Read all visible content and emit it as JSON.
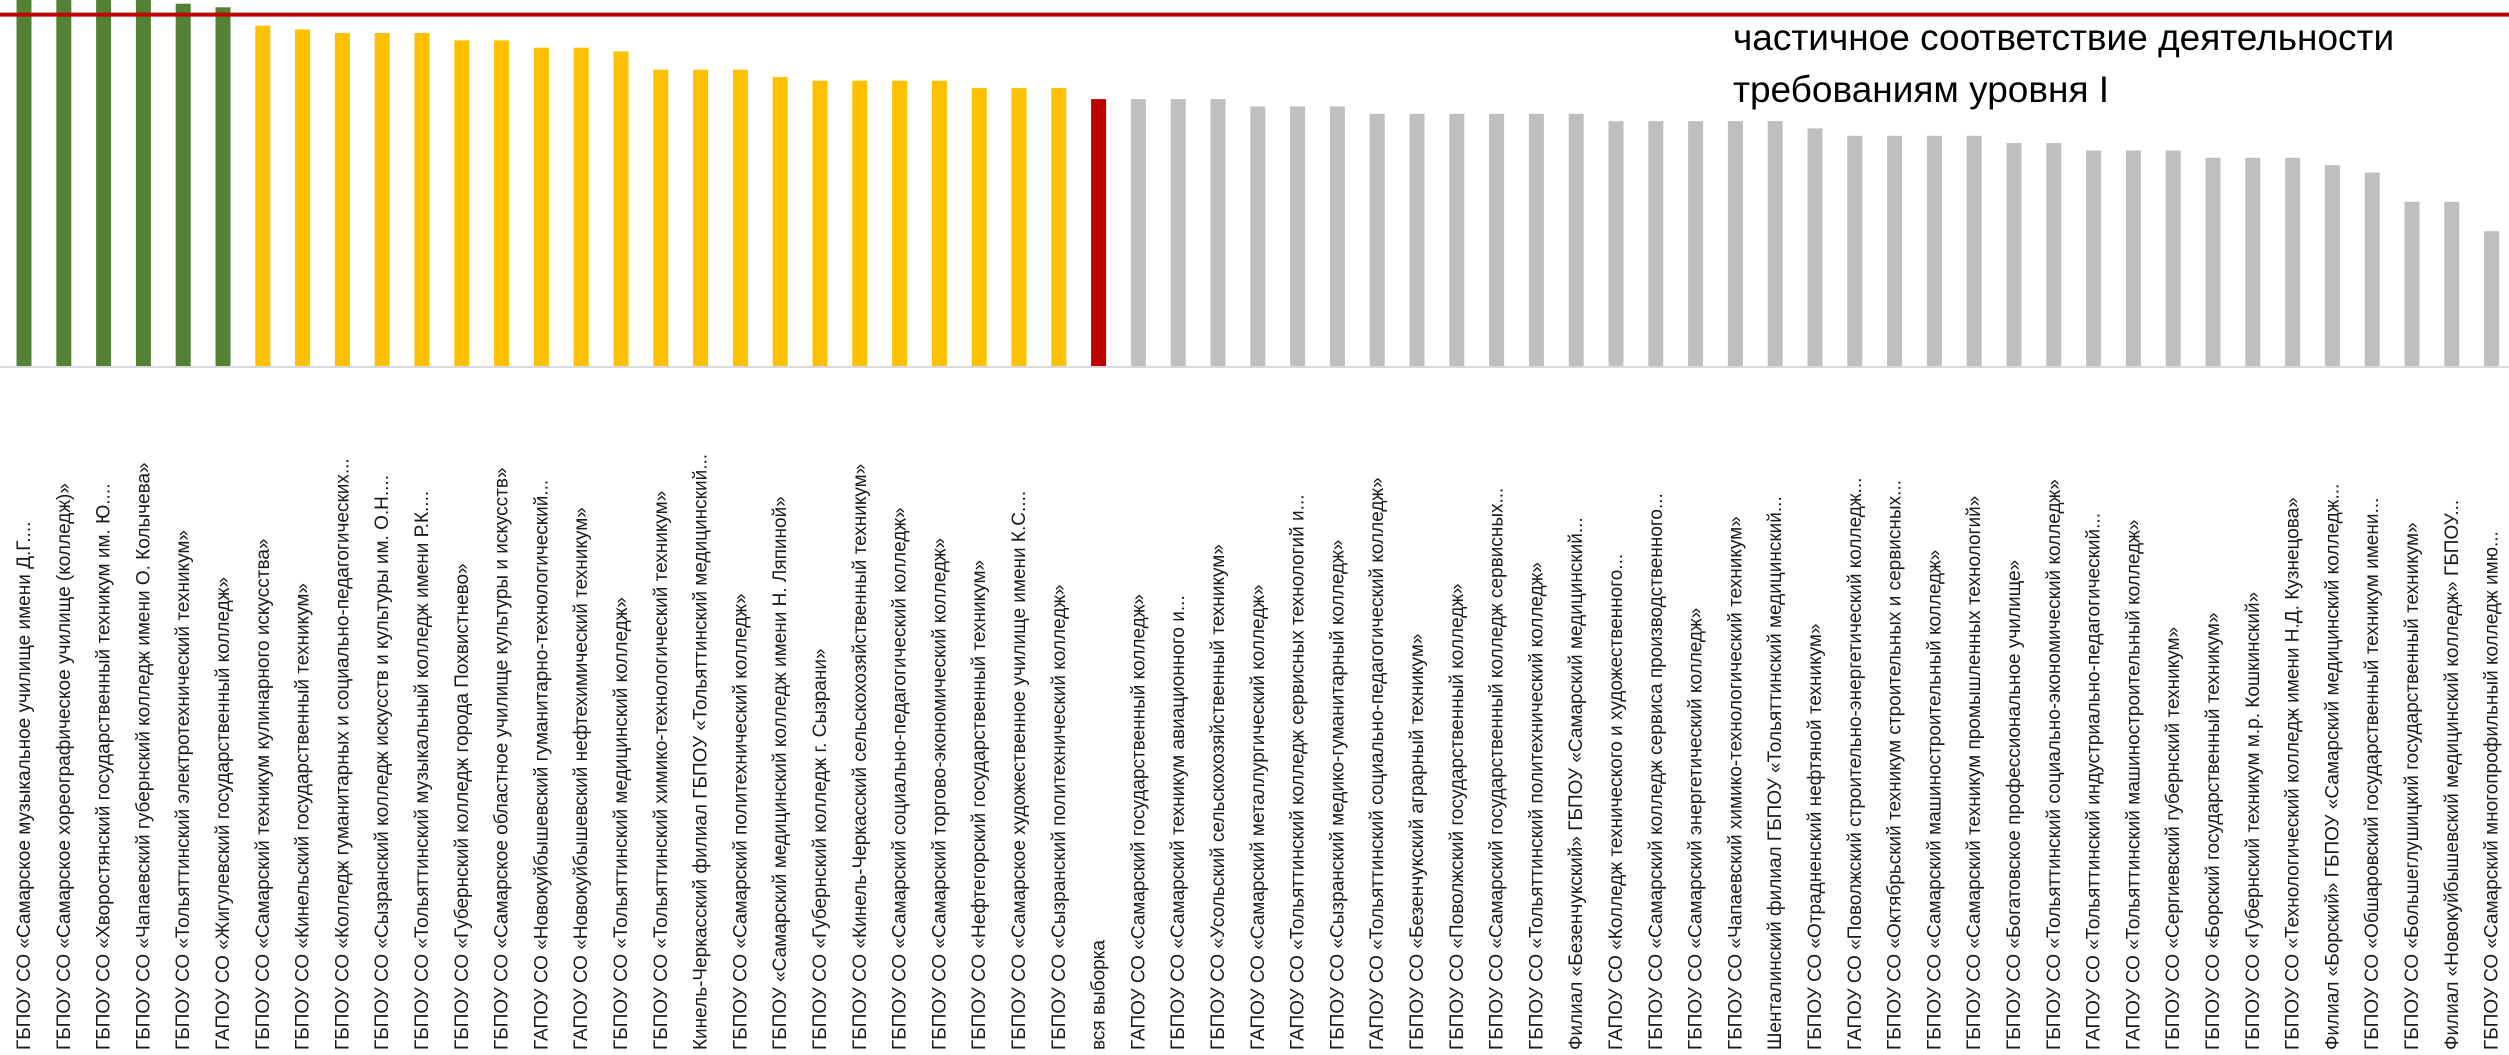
{
  "chart_data": {
    "type": "bar",
    "title": "",
    "xlabel": "",
    "ylabel": "",
    "ylim": [
      0,
      100
    ],
    "grid": false,
    "legend": "none",
    "annotation": "частичное соответствие деятельности требованиям уровня I",
    "threshold_line": {
      "value": 96,
      "color": "#C00000"
    },
    "colors": {
      "green": "#548235",
      "yellow": "#FFC000",
      "red": "#C00000",
      "gray": "#BFBFBF",
      "axis": "#D9D9D9"
    },
    "categories": [
      "ГБПОУ СО «Самарское музыкальное училище имени Д.Г....",
      "ГБПОУ СО «Самарское хореографическое училище (колледж)»",
      "ГБПОУ СО «Хворостянский государственный техникум им. Ю....",
      "ГБПОУ СО «Чапаевский губернский колледж имени О. Колычева»",
      "ГБПОУ СО «Тольяттинский электротехнический техникум»",
      "ГАПОУ СО «Жигулевский государственный колледж»",
      "ГБПОУ СО «Самарский техникум кулинарного искусства»",
      "ГБПОУ СО «Кинельский государственный техникум»",
      "ГБПОУ СО «Колледж гуманитарных и социально-педагогических...",
      "ГБПОУ СО «Сызранский колледж искусств и культуры им. О.Н....",
      "ГБПОУ СО «Тольяттинский музыкальный колледж имени Р.К....",
      "ГБПОУ СО «Губернский колледж города Похвистнево»",
      "ГБПОУ СО «Самарское областное училище культуры и искусств»",
      "ГАПОУ СО «Новокуйбышевский гуманитарно-технологический...",
      "ГАПОУ СО «Новокуйбышевский нефтехимический техникум»",
      "ГБПОУ СО «Тольяттинский медицинский колледж»",
      "ГБПОУ СО «Тольяттинский химико-технологический техникум»",
      "Кинель-Черкасский филиал ГБПОУ «Тольяттинский медицинский...",
      "ГБПОУ СО «Самарский политехнический колледж»",
      "ГБПОУ «Самарский медицинский колледж имени Н. Ляпиной»",
      "ГБПОУ СО «Губернский колледж г. Сызрани»",
      "ГБПОУ СО «Кинель-Черкасский сельскохозяйственный техникум»",
      "ГБПОУ СО «Самарский социально-педагогический колледж»",
      "ГБПОУ СО «Самарский торгово-экономический колледж»",
      "ГБПОУ СО «Нефтегорский государственный техникум»",
      "ГБПОУ СО «Самарское художественное училище имени К.С....",
      "ГБПОУ СО «Сызранский политехнический колледж»",
      "вся выборка",
      "ГАПОУ СО «Самарский государственный колледж»",
      "ГБПОУ СО «Самарский техникум авиационного и...",
      "ГБПОУ СО «Усольский сельскохозяйственный техникум»",
      "ГАПОУ СО «Самарский металлургический колледж»",
      "ГАПОУ СО «Тольяттинский колледж сервисных технологий и...",
      "ГБПОУ СО «Сызранский медико-гуманитарный колледж»",
      "ГАПОУ СО «Тольяттинский социально-педагогический колледж»",
      "ГБПОУ СО «Безенчукский аграрный техникум»",
      "ГБПОУ СО «Поволжский государственный колледж»",
      "ГБПОУ СО «Самарский государственный колледж сервисных...",
      "ГБПОУ СО «Тольяттинский политехнический колледж»",
      "Филиал «Безенчукский» ГБПОУ «Самарский медицинский...",
      "ГАПОУ СО «Колледж технического и художественного...",
      "ГБПОУ СО «Самарский колледж сервиса производственного...",
      "ГБПОУ СО «Самарский энергетический колледж»",
      "ГБПОУ СО «Чапаевский химико-технологический техникум»",
      "Шенталинский филиал ГБПОУ «Тольяттинский медицинский...",
      "ГБПОУ СО «Отрадненский нефтяной техникум»",
      "ГАПОУ СО «Поволжский строительно-энергетический колледж...",
      "ГБПОУ СО «Октябрьский техникум строительных и сервисных...",
      "ГБПОУ СО «Самарский машиностроительный колледж»",
      "ГБПОУ СО «Самарский техникум промышленных технологий»",
      "ГБПОУ СО «Богатовское профессиональное училище»",
      "ГБПОУ СО «Тольяттинский социально-экономический колледж»",
      "ГАПОУ СО «Тольяттинский индустриально-педагогический...",
      "ГАПОУ СО «Тольяттинский машиностроительный колледж»",
      "ГБПОУ СО «Сергиевский губернский техникум»",
      "ГБПОУ СО «Борский государственный техникум»",
      "ГБПОУ СО «Губернский техникум м.р. Кошкинский»",
      "ГБПОУ СО «Технологический колледж имени Н.Д. Кузнецова»",
      "Филиал «Борский» ГБПОУ «Самарский медицинский колледж...",
      "ГБПОУ СО «Обшаровский государственный техникум имени...",
      "ГБПОУ СО «Большеглушицкий государственный техникум»",
      "Филиал «Новокуйбышевский медицинский колледж» ГБПОУ...",
      "ГБПОУ СО «Самарский многопрофильный колледж имю..."
    ],
    "values": [
      100,
      100,
      100,
      100,
      99,
      98,
      93,
      92,
      91,
      91,
      91,
      89,
      89,
      87,
      87,
      86,
      81,
      81,
      81,
      79,
      78,
      78,
      78,
      78,
      76,
      76,
      76,
      73,
      73,
      73,
      73,
      71,
      71,
      71,
      69,
      69,
      69,
      69,
      69,
      69,
      67,
      67,
      67,
      67,
      67,
      65,
      63,
      63,
      63,
      63,
      61,
      61,
      59,
      59,
      59,
      57,
      57,
      57,
      55,
      53,
      45,
      45,
      37
    ],
    "bar_colors": [
      "green",
      "green",
      "green",
      "green",
      "green",
      "green",
      "yellow",
      "yellow",
      "yellow",
      "yellow",
      "yellow",
      "yellow",
      "yellow",
      "yellow",
      "yellow",
      "yellow",
      "yellow",
      "yellow",
      "yellow",
      "yellow",
      "yellow",
      "yellow",
      "yellow",
      "yellow",
      "yellow",
      "yellow",
      "yellow",
      "red",
      "gray",
      "gray",
      "gray",
      "gray",
      "gray",
      "gray",
      "gray",
      "gray",
      "gray",
      "gray",
      "gray",
      "gray",
      "gray",
      "gray",
      "gray",
      "gray",
      "gray",
      "gray",
      "gray",
      "gray",
      "gray",
      "gray",
      "gray",
      "gray",
      "gray",
      "gray",
      "gray",
      "gray",
      "gray",
      "gray",
      "gray",
      "gray",
      "gray",
      "gray",
      "gray"
    ]
  }
}
